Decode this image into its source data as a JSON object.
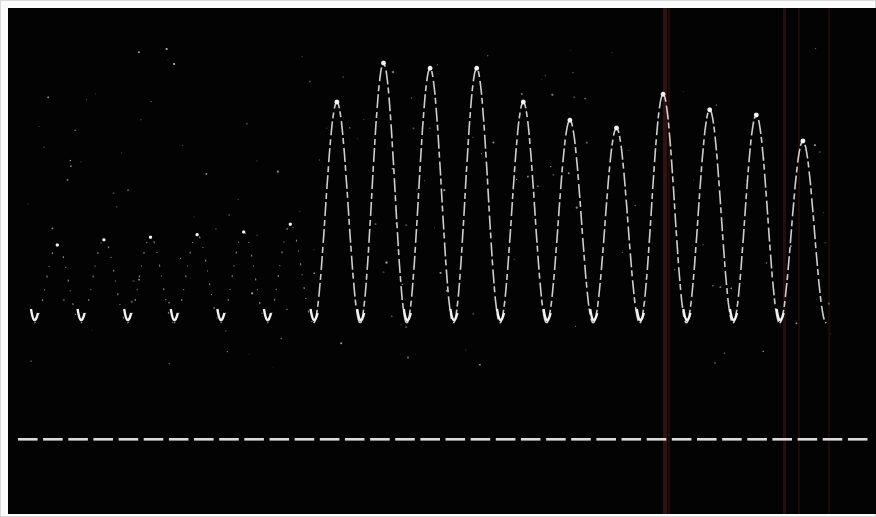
{
  "image": {
    "subject": "oscilloscope-trace-photograph",
    "colors": {
      "paper": "#fbfbfb",
      "border": "#d9d9d9",
      "screen": "#030303",
      "trace": "#f2f2f2",
      "streak": "#5a1d1d"
    },
    "waveform": {
      "cycles": 17,
      "amplitude_profile": [
        0.3,
        0.32,
        0.33,
        0.34,
        0.35,
        0.38,
        0.85,
        1.0,
        0.98,
        0.98,
        0.85,
        0.78,
        0.75,
        0.88,
        0.82,
        0.8,
        0.7
      ],
      "tail_fraction": 0.35
    },
    "timing_marker": {
      "dash_count": 34
    }
  }
}
